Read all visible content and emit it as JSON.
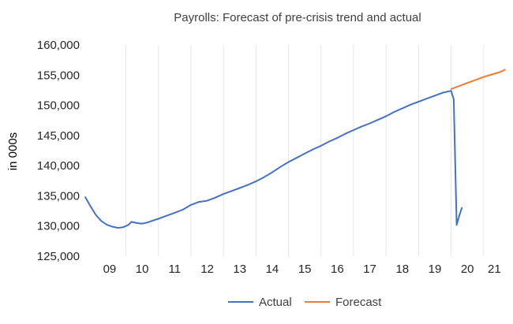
{
  "chart_data": {
    "type": "line",
    "title": "Payrolls: Forecast of pre-crisis trend and actual",
    "ylabel": "in 000s",
    "xlabel": "",
    "ylim": [
      125000,
      160000
    ],
    "xlim": [
      2008.75,
      2021.66
    ],
    "yticks": [
      "125,000",
      "130,000",
      "135,000",
      "140,000",
      "145,000",
      "150,000",
      "155,000",
      "160,000"
    ],
    "xtick_labels": [
      "09",
      "10",
      "11",
      "12",
      "13",
      "14",
      "15",
      "16",
      "17",
      "18",
      "19",
      "20",
      "21"
    ],
    "legend_position": "bottom",
    "grid": "vertical",
    "series": [
      {
        "name": "Actual",
        "color": "#4472c4",
        "points": [
          [
            2008.75,
            134800
          ],
          [
            2008.92,
            133200
          ],
          [
            2009.08,
            131800
          ],
          [
            2009.25,
            130800
          ],
          [
            2009.42,
            130200
          ],
          [
            2009.58,
            129900
          ],
          [
            2009.75,
            129700
          ],
          [
            2009.92,
            129800
          ],
          [
            2010.08,
            130200
          ],
          [
            2010.17,
            130700
          ],
          [
            2010.33,
            130500
          ],
          [
            2010.5,
            130400
          ],
          [
            2010.67,
            130600
          ],
          [
            2010.83,
            130900
          ],
          [
            2011.0,
            131200
          ],
          [
            2011.25,
            131700
          ],
          [
            2011.5,
            132200
          ],
          [
            2011.75,
            132700
          ],
          [
            2012.0,
            133500
          ],
          [
            2012.25,
            134000
          ],
          [
            2012.5,
            134200
          ],
          [
            2012.75,
            134700
          ],
          [
            2013.0,
            135300
          ],
          [
            2013.25,
            135800
          ],
          [
            2013.5,
            136300
          ],
          [
            2013.75,
            136800
          ],
          [
            2014.0,
            137400
          ],
          [
            2014.25,
            138100
          ],
          [
            2014.5,
            138900
          ],
          [
            2014.75,
            139800
          ],
          [
            2015.0,
            140600
          ],
          [
            2015.25,
            141300
          ],
          [
            2015.5,
            142000
          ],
          [
            2015.75,
            142700
          ],
          [
            2016.0,
            143300
          ],
          [
            2016.25,
            144000
          ],
          [
            2016.5,
            144600
          ],
          [
            2016.75,
            145300
          ],
          [
            2017.0,
            145900
          ],
          [
            2017.25,
            146500
          ],
          [
            2017.5,
            147000
          ],
          [
            2017.75,
            147600
          ],
          [
            2018.0,
            148200
          ],
          [
            2018.25,
            148900
          ],
          [
            2018.5,
            149500
          ],
          [
            2018.75,
            150100
          ],
          [
            2019.0,
            150600
          ],
          [
            2019.25,
            151100
          ],
          [
            2019.5,
            151600
          ],
          [
            2019.75,
            152100
          ],
          [
            2020.0,
            152400
          ],
          [
            2020.08,
            151000
          ],
          [
            2020.17,
            130200
          ],
          [
            2020.25,
            131700
          ],
          [
            2020.33,
            133000
          ]
        ]
      },
      {
        "name": "Forecast",
        "color": "#ed7d31",
        "points": [
          [
            2020.0,
            152700
          ],
          [
            2020.25,
            153200
          ],
          [
            2020.5,
            153700
          ],
          [
            2020.75,
            154200
          ],
          [
            2021.0,
            154700
          ],
          [
            2021.25,
            155100
          ],
          [
            2021.5,
            155500
          ],
          [
            2021.66,
            155900
          ]
        ]
      }
    ]
  }
}
